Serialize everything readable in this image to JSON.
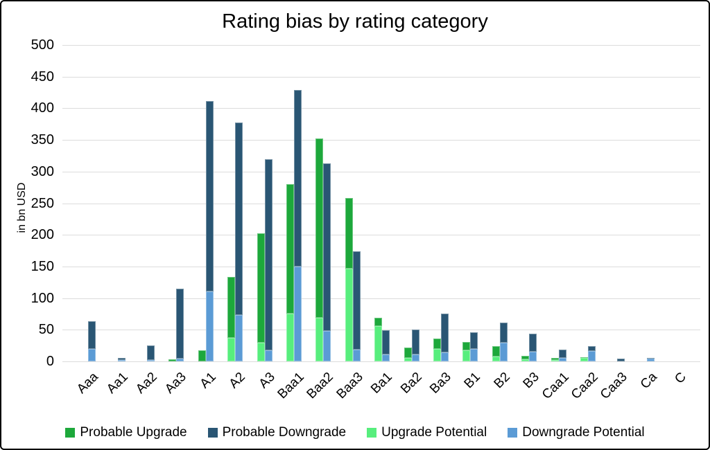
{
  "title": "Rating bias by rating category",
  "colors": {
    "probable_upgrade": "#1DA83B",
    "probable_downgrade": "#2A5674",
    "upgrade_potential": "#57EE7D",
    "downgrade_potential": "#5B9BD5",
    "gridline": "#DCDCDC",
    "background": "#FFFFFF",
    "frame_border": "#000000"
  },
  "chart_data": {
    "type": "bar",
    "subtype": "grouped-stacked",
    "title": "Rating bias by rating category",
    "xlabel": "",
    "ylabel": "in bn USD",
    "ylim": [
      0,
      500
    ],
    "yticks": [
      0,
      50,
      100,
      150,
      200,
      250,
      300,
      350,
      400,
      450,
      500
    ],
    "grid": true,
    "legend_position": "bottom",
    "categories": [
      "Aaa",
      "Aa1",
      "Aa2",
      "Aa3",
      "A1",
      "A2",
      "A3",
      "Baa1",
      "Baa2",
      "Baa3",
      "Ba1",
      "Ba2",
      "Ba3",
      "B1",
      "B2",
      "B3",
      "Caa1",
      "Caa2",
      "Caa3",
      "Ca",
      "C"
    ],
    "series": [
      {
        "name": "Probable Upgrade",
        "stack": "upgrade",
        "layer": "top",
        "color_key": "probable_upgrade",
        "values": [
          0,
          0,
          0,
          3,
          17,
          96,
          172,
          205,
          283,
          111,
          13,
          16,
          16,
          13,
          16,
          6,
          3,
          2,
          0,
          0,
          0
        ]
      },
      {
        "name": "Probable Downgrade",
        "stack": "downgrade",
        "layer": "top",
        "color_key": "probable_downgrade",
        "values": [
          43,
          4,
          23,
          111,
          301,
          305,
          303,
          279,
          265,
          155,
          38,
          39,
          62,
          26,
          31,
          29,
          13,
          8,
          4,
          1,
          0
        ]
      },
      {
        "name": "Upgrade Potential",
        "stack": "upgrade",
        "layer": "bottom",
        "color_key": "upgrade_potential",
        "values": [
          0,
          0,
          0,
          0,
          0,
          37,
          30,
          75,
          69,
          147,
          56,
          6,
          20,
          18,
          8,
          3,
          2,
          5,
          0,
          0,
          0
        ]
      },
      {
        "name": "Downgrade Potential",
        "stack": "downgrade",
        "layer": "bottom",
        "color_key": "downgrade_potential",
        "values": [
          20,
          2,
          2,
          4,
          110,
          73,
          17,
          150,
          48,
          19,
          11,
          11,
          14,
          20,
          30,
          15,
          6,
          16,
          0,
          4,
          0
        ]
      }
    ]
  }
}
